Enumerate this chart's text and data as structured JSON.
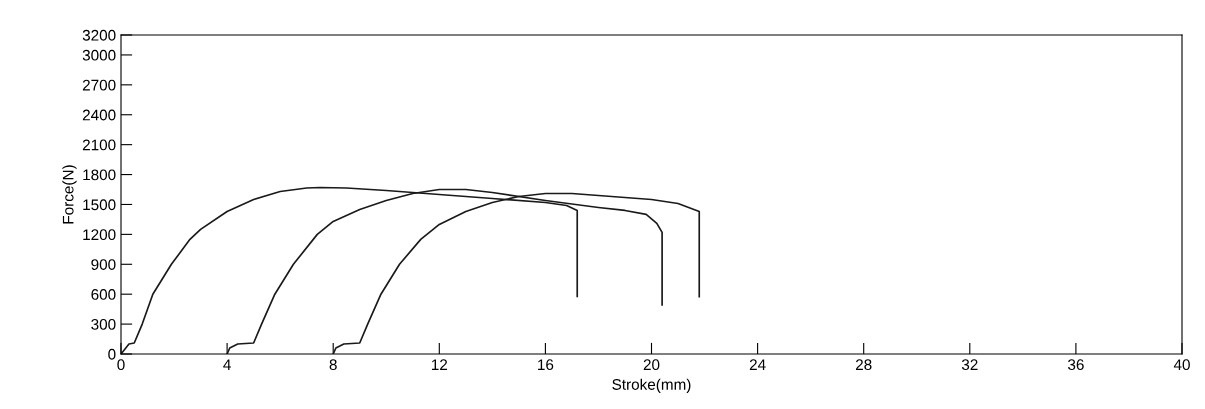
{
  "chart_data": {
    "type": "line",
    "xlabel": "Stroke(mm)",
    "ylabel": "Force(N)",
    "xlim": [
      0,
      40
    ],
    "ylim": [
      0,
      3200
    ],
    "xticks": [
      0,
      4,
      8,
      12,
      16,
      20,
      24,
      28,
      32,
      36,
      40
    ],
    "yticks": [
      0,
      300,
      600,
      900,
      1200,
      1500,
      1800,
      2100,
      2400,
      2700,
      3000,
      3200
    ],
    "grid": false,
    "legend": false,
    "series": [
      {
        "color": "#1a1a1a",
        "x": [
          0,
          0.3,
          0.5,
          0.8,
          1.2,
          1.9,
          2.6,
          3.0,
          4,
          5,
          6,
          7,
          7.5,
          8.5,
          10,
          12,
          14,
          16,
          16.8,
          17.2,
          17.2
        ],
        "values": [
          0,
          100,
          110,
          300,
          600,
          900,
          1150,
          1250,
          1430,
          1550,
          1630,
          1665,
          1670,
          1665,
          1640,
          1600,
          1560,
          1520,
          1490,
          1440,
          577
        ]
      },
      {
        "color": "#1a1a1a",
        "x": [
          4,
          4.1,
          4.4,
          5,
          5.3,
          5.8,
          6.5,
          7.4,
          8,
          9,
          10,
          11,
          12,
          13,
          14,
          16,
          18,
          19,
          19.8,
          20.2,
          20.4,
          20.4
        ],
        "values": [
          0,
          60,
          100,
          110,
          300,
          600,
          900,
          1200,
          1330,
          1450,
          1540,
          1610,
          1650,
          1650,
          1620,
          1540,
          1470,
          1440,
          1400,
          1310,
          1220,
          493
        ]
      },
      {
        "color": "#1a1a1a",
        "x": [
          8,
          8.1,
          8.4,
          9,
          9.3,
          9.8,
          10.5,
          11.3,
          12,
          13,
          14,
          15,
          16,
          17,
          18,
          20,
          21,
          21.8,
          21.8
        ],
        "values": [
          0,
          60,
          100,
          110,
          300,
          600,
          900,
          1150,
          1300,
          1430,
          1520,
          1580,
          1610,
          1610,
          1590,
          1550,
          1510,
          1430,
          574
        ]
      }
    ]
  }
}
